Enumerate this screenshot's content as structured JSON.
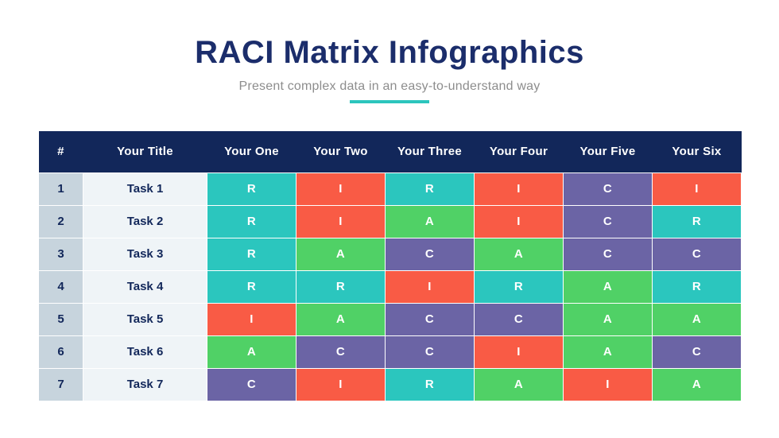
{
  "page": {
    "title": "RACI Matrix Infographics",
    "subtitle": "Present complex data in an easy-to-understand way"
  },
  "colors": {
    "title_navy": "#1B2D6B",
    "subtitle_gray": "#8D8D8D",
    "underline_teal": "#2CC5BD",
    "header_navy": "#12275A",
    "index_column_bg": "#C7D4DD",
    "task_column_bg": "#EFF4F7",
    "responsible_teal": "#2BC6BE",
    "accountable_green": "#50D166",
    "consulted_purple": "#6B64A5",
    "informed_red": "#F95B45"
  },
  "chart_data": {
    "type": "table",
    "title": "RACI Matrix Infographics",
    "subtitle": "Present complex data in an easy-to-understand way",
    "columns": [
      "#",
      "Your Title",
      "Your One",
      "Your Two",
      "Your Three",
      "Your Four",
      "Your Five",
      "Your Six"
    ],
    "rows": [
      {
        "index": "1",
        "task": "Task 1",
        "values": [
          "R",
          "I",
          "R",
          "I",
          "C",
          "I"
        ]
      },
      {
        "index": "2",
        "task": "Task 2",
        "values": [
          "R",
          "I",
          "A",
          "I",
          "C",
          "R"
        ]
      },
      {
        "index": "3",
        "task": "Task 3",
        "values": [
          "R",
          "A",
          "C",
          "A",
          "C",
          "C"
        ]
      },
      {
        "index": "4",
        "task": "Task 4",
        "values": [
          "R",
          "R",
          "I",
          "R",
          "A",
          "R"
        ]
      },
      {
        "index": "5",
        "task": "Task 5",
        "values": [
          "I",
          "A",
          "C",
          "C",
          "A",
          "A"
        ]
      },
      {
        "index": "6",
        "task": "Task 6",
        "values": [
          "A",
          "C",
          "C",
          "I",
          "A",
          "C"
        ]
      },
      {
        "index": "7",
        "task": "Task 7",
        "values": [
          "C",
          "I",
          "R",
          "A",
          "I",
          "A"
        ]
      }
    ],
    "value_colors": {
      "R": "#2BC6BE",
      "A": "#50D166",
      "C": "#6B64A5",
      "I": "#F95B45"
    }
  }
}
